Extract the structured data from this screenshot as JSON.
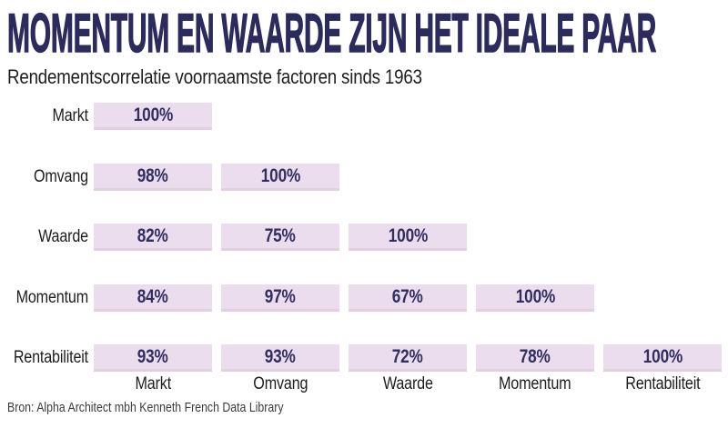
{
  "title": "MOMENTUM EN WAARDE ZIJN HET IDEALE PAAR",
  "subtitle": "Rendementscorrelatie voornaamste factoren sinds 1963",
  "source": "Bron: Alpha Architect mbh Kenneth French Data Library",
  "colors": {
    "title_navy": "#2b2b5c",
    "cell_fill": "#ecddee",
    "cell_bottom_edge": "#e3cfe4",
    "cell_text_navy": "#312e60",
    "label_black": "#1d1d1b",
    "source_grey": "#3b3b3a",
    "background": "#ffffff"
  },
  "chart_data": {
    "type": "heatmap",
    "title": "MOMENTUM EN WAARDE ZIJN HET IDEALE PAAR",
    "subtitle": "Rendementscorrelatie voornaamste factoren sinds 1963",
    "layout": "lower-triangular-correlation-matrix",
    "rows": [
      "Markt",
      "Omvang",
      "Waarde",
      "Momentum",
      "Rentabiliteit"
    ],
    "columns": [
      "Markt",
      "Omvang",
      "Waarde",
      "Momentum",
      "Rentabiliteit"
    ],
    "unit": "%",
    "values": [
      [
        100,
        null,
        null,
        null,
        null
      ],
      [
        98,
        100,
        null,
        null,
        null
      ],
      [
        82,
        75,
        100,
        null,
        null
      ],
      [
        84,
        97,
        67,
        100,
        null
      ],
      [
        93,
        93,
        72,
        78,
        100
      ]
    ],
    "grid": false,
    "legend": false,
    "source": "Bron: Alpha Architect mbh Kenneth French Data Library"
  }
}
